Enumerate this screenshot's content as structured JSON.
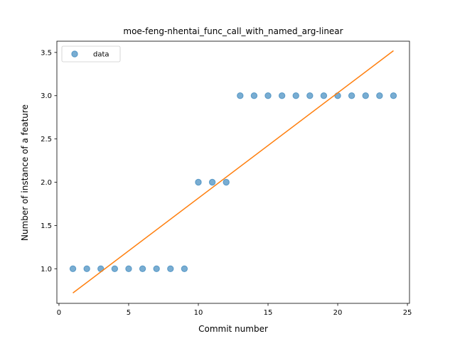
{
  "chart_data": {
    "type": "scatter",
    "title": "moe-feng-nhentai_func_call_with_named_arg-linear",
    "xlabel": "Commit number",
    "ylabel": "Number of instance of a feature",
    "xlim": [
      -0.15,
      25.15
    ],
    "ylim": [
      0.6,
      3.63
    ],
    "xticks": [
      0,
      5,
      10,
      15,
      20,
      25
    ],
    "yticks": [
      1.0,
      1.5,
      2.0,
      2.5,
      3.0,
      3.5
    ],
    "xtick_labels": [
      "0",
      "5",
      "10",
      "15",
      "20",
      "25"
    ],
    "ytick_labels": [
      "1.0",
      "1.5",
      "2.0",
      "2.5",
      "3.0",
      "3.5"
    ],
    "legend_position": "top-left",
    "grid": false,
    "series": [
      {
        "name": "data",
        "kind": "scatter",
        "color": "#1f77b4",
        "x": [
          1,
          2,
          3,
          4,
          5,
          6,
          7,
          8,
          9,
          10,
          11,
          12,
          13,
          14,
          15,
          16,
          17,
          18,
          19,
          20,
          21,
          22,
          23,
          24
        ],
        "y": [
          1,
          1,
          1,
          1,
          1,
          1,
          1,
          1,
          1,
          2,
          2,
          2,
          3,
          3,
          3,
          3,
          3,
          3,
          3,
          3,
          3,
          3,
          3,
          3
        ]
      },
      {
        "kind": "line",
        "color": "#ff7f0e",
        "x": [
          1,
          24
        ],
        "y": [
          0.72,
          3.52
        ]
      }
    ]
  }
}
